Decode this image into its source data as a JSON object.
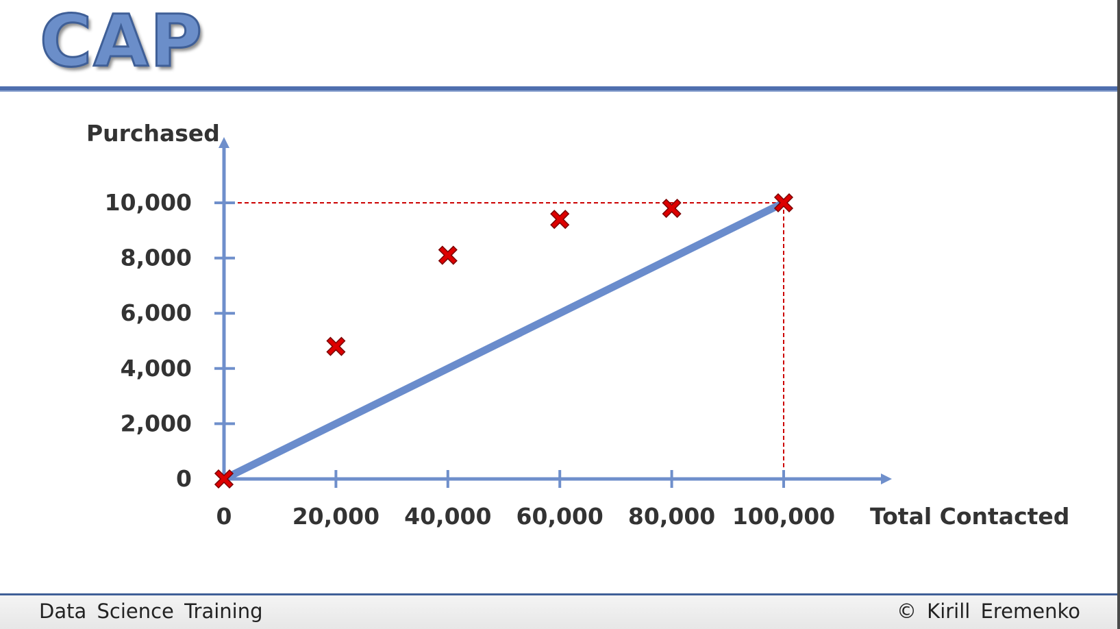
{
  "slide": {
    "title": "CAP",
    "footer_left": "Data Science Training",
    "footer_right": "© Kirill Eremenko"
  },
  "colors": {
    "accent": "#4f6fae",
    "axis": "#6f8fcb",
    "baseline": "#6a8ccc",
    "marker": "#dd0000",
    "guide": "#cc0000"
  },
  "chart_data": {
    "type": "scatter",
    "xlabel": "Total Contacted",
    "ylabel": "Purchased",
    "xlim": [
      0,
      100000
    ],
    "ylim": [
      0,
      10000
    ],
    "x_ticks": [
      0,
      20000,
      40000,
      60000,
      80000,
      100000
    ],
    "x_tick_labels": [
      "0",
      "20,000",
      "40,000",
      "60,000",
      "80,000",
      "100,000"
    ],
    "y_ticks": [
      0,
      2000,
      4000,
      6000,
      8000,
      10000
    ],
    "y_tick_labels": [
      "0",
      "2,000",
      "4,000",
      "6,000",
      "8,000",
      "10,000"
    ],
    "points": {
      "x": [
        0,
        20000,
        40000,
        60000,
        80000,
        100000
      ],
      "y": [
        0,
        4800,
        8100,
        9400,
        9800,
        10000
      ]
    },
    "baseline": {
      "x": [
        0,
        100000
      ],
      "y": [
        0,
        10000
      ]
    },
    "guides": {
      "x": 100000,
      "y": 10000
    },
    "grid": false,
    "legend": "none"
  }
}
